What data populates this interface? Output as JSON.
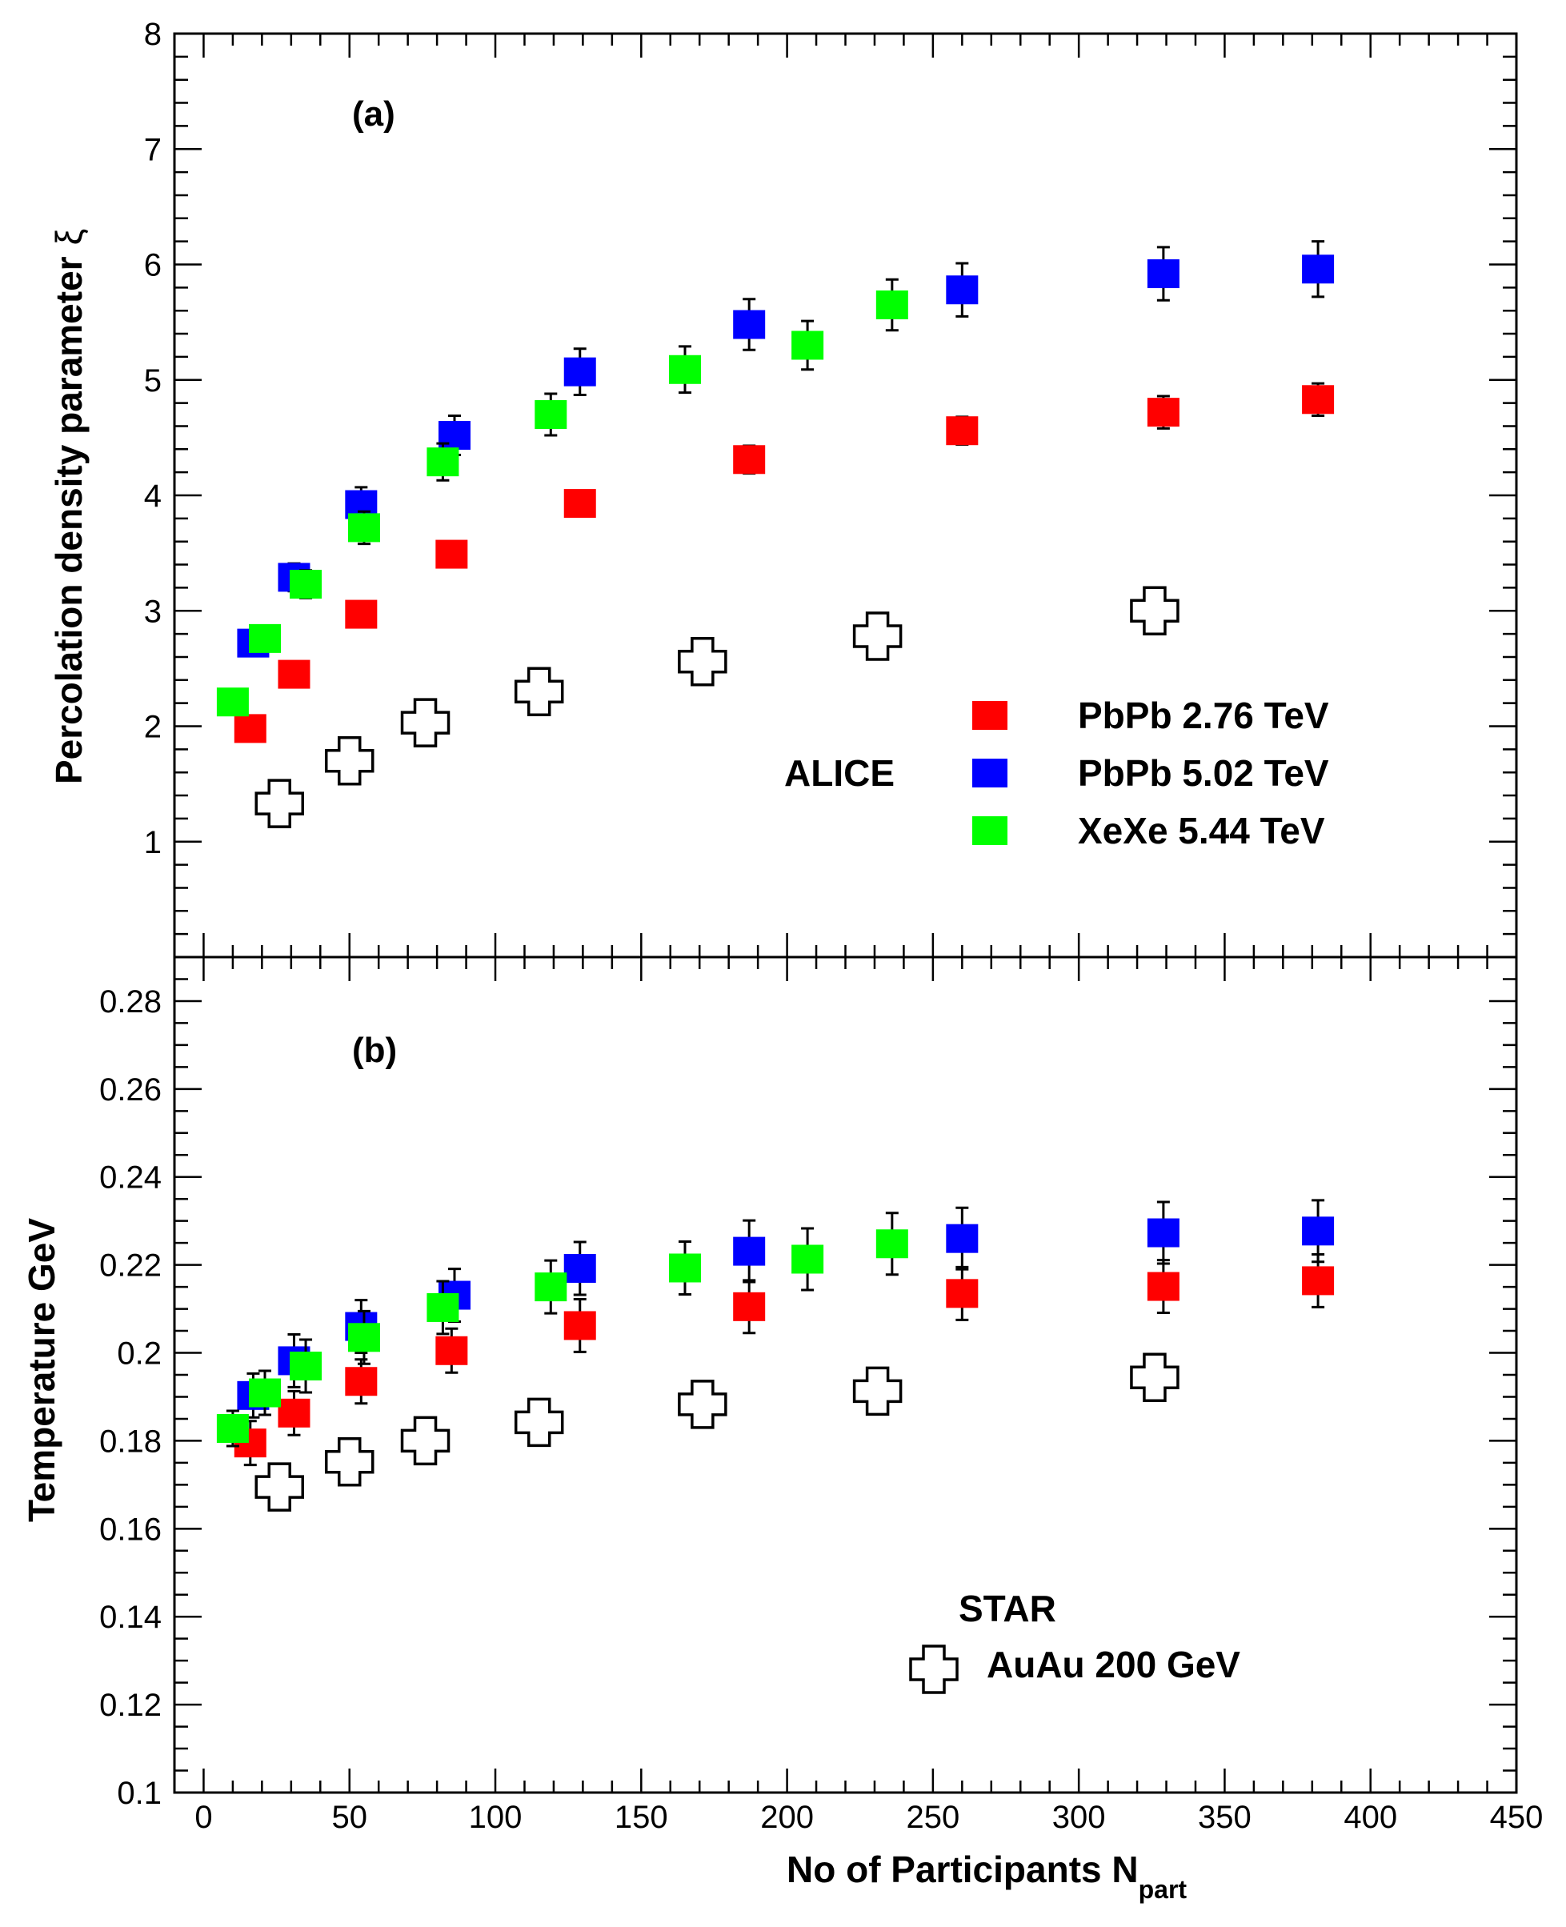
{
  "chart_data": [
    {
      "panel": "(a)",
      "type": "scatter",
      "ylabel": "Percolation density parameter",
      "ylabel_symbol": "ξ",
      "ylim": [
        0,
        8
      ],
      "xlim": [
        -10,
        450
      ],
      "yticks": [
        "1",
        "2",
        "3",
        "4",
        "5",
        "6",
        "7",
        "8"
      ],
      "legend_group": "ALICE",
      "series": [
        {
          "name": "PbPb 2.76 TeV",
          "color": "#ff0000",
          "marker": "square",
          "points": [
            [
              16,
              1.98,
              0.08
            ],
            [
              31,
              2.45,
              0.08
            ],
            [
              54,
              2.97,
              0.08
            ],
            [
              85,
              3.49,
              0.1
            ],
            [
              129,
              3.93,
              0.11
            ],
            [
              187,
              4.31,
              0.12
            ],
            [
              260,
              4.56,
              0.12
            ],
            [
              329,
              4.72,
              0.14
            ],
            [
              382,
              4.83,
              0.14
            ]
          ]
        },
        {
          "name": "PbPb 5.02 TeV",
          "color": "#0000ff",
          "marker": "square",
          "points": [
            [
              17,
              2.72,
              0.08
            ],
            [
              31,
              3.29,
              0.12
            ],
            [
              54,
              3.92,
              0.15
            ],
            [
              86,
              4.52,
              0.17
            ],
            [
              129,
              5.07,
              0.2
            ],
            [
              187,
              5.48,
              0.22
            ],
            [
              260,
              5.78,
              0.23
            ],
            [
              329,
              5.92,
              0.23
            ],
            [
              382,
              5.96,
              0.24
            ]
          ]
        },
        {
          "name": "XeXe 5.44 TeV",
          "color": "#00ff00",
          "marker": "square",
          "points": [
            [
              10,
              2.21,
              0.07
            ],
            [
              21,
              2.76,
              0.08
            ],
            [
              35,
              3.23,
              0.12
            ],
            [
              55,
              3.72,
              0.14
            ],
            [
              82,
              4.29,
              0.16
            ],
            [
              119,
              4.7,
              0.18
            ],
            [
              165,
              5.09,
              0.2
            ],
            [
              207,
              5.3,
              0.21
            ],
            [
              236,
              5.65,
              0.22
            ]
          ]
        }
      ]
    },
    {
      "panel": "(b)",
      "type": "scatter",
      "ylabel": "Temperature GeV",
      "ylim": [
        0.1,
        0.29
      ],
      "xlim": [
        -10,
        450
      ],
      "yticks": [
        "0.1",
        "0.12",
        "0.14",
        "0.16",
        "0.18",
        "0.2",
        "0.22",
        "0.24",
        "0.26",
        "0.28"
      ],
      "xticks": [
        "0",
        "50",
        "100",
        "150",
        "200",
        "250",
        "300",
        "350",
        "400",
        "450"
      ],
      "xlabel": "No of Participants N",
      "xlabel_sub": "part",
      "legend_group": "STAR",
      "series": [
        {
          "name": "PbPb 2.76 TeV",
          "color": "#ff0000",
          "marker": "square",
          "points": [
            [
              16,
              0.1795,
              0.005
            ],
            [
              31,
              0.1863,
              0.005
            ],
            [
              54,
              0.1935,
              0.005
            ],
            [
              85,
              0.2005,
              0.005
            ],
            [
              129,
              0.2062,
              0.006
            ],
            [
              187,
              0.2105,
              0.006
            ],
            [
              260,
              0.2135,
              0.006
            ],
            [
              329,
              0.2151,
              0.006
            ],
            [
              382,
              0.2164,
              0.006
            ]
          ]
        },
        {
          "name": "PbPb 5.02 TeV",
          "color": "#0000ff",
          "marker": "square",
          "points": [
            [
              17,
              0.1903,
              0.005
            ],
            [
              31,
              0.1982,
              0.006
            ],
            [
              54,
              0.206,
              0.006
            ],
            [
              86,
              0.2131,
              0.006
            ],
            [
              129,
              0.2192,
              0.006
            ],
            [
              187,
              0.2231,
              0.007
            ],
            [
              260,
              0.226,
              0.007
            ],
            [
              329,
              0.2273,
              0.007
            ],
            [
              382,
              0.2277,
              0.007
            ]
          ]
        },
        {
          "name": "XeXe 5.44 TeV",
          "color": "#00ff00",
          "marker": "square",
          "points": [
            [
              10,
              0.1828,
              0.004
            ],
            [
              21,
              0.1909,
              0.005
            ],
            [
              35,
              0.197,
              0.006
            ],
            [
              55,
              0.2035,
              0.006
            ],
            [
              82,
              0.2103,
              0.006
            ],
            [
              119,
              0.215,
              0.006
            ],
            [
              165,
              0.2193,
              0.006
            ],
            [
              207,
              0.2213,
              0.007
            ],
            [
              236,
              0.2248,
              0.007
            ]
          ]
        },
        {
          "name": "AuAu 200 GeV",
          "color": "#000000",
          "marker": "open-cross",
          "points": [
            [
              26,
              0.1695,
              0
            ],
            [
              50,
              0.1752,
              0
            ],
            [
              76,
              0.18,
              0
            ],
            [
              115,
              0.1842,
              0
            ],
            [
              171,
              0.1883,
              0
            ],
            [
              231,
              0.1913,
              0
            ],
            [
              326,
              0.1944,
              0
            ]
          ]
        }
      ]
    }
  ],
  "star_top_points": [
    [
      26,
      1.33
    ],
    [
      50,
      1.7
    ],
    [
      76,
      2.03
    ],
    [
      115,
      2.3
    ],
    [
      171,
      2.56
    ],
    [
      231,
      2.78
    ],
    [
      326,
      3.0
    ]
  ],
  "legend": {
    "alice_label": "ALICE",
    "star_label": "STAR",
    "pb276": "PbPb 2.76 TeV",
    "pb502": "PbPb 5.02 TeV",
    "xe544": "XeXe 5.44 TeV",
    "auau": "AuAu 200 GeV"
  },
  "colors": {
    "red": "#ff0000",
    "blue": "#0000ff",
    "green": "#00ff00",
    "black": "#000000"
  }
}
